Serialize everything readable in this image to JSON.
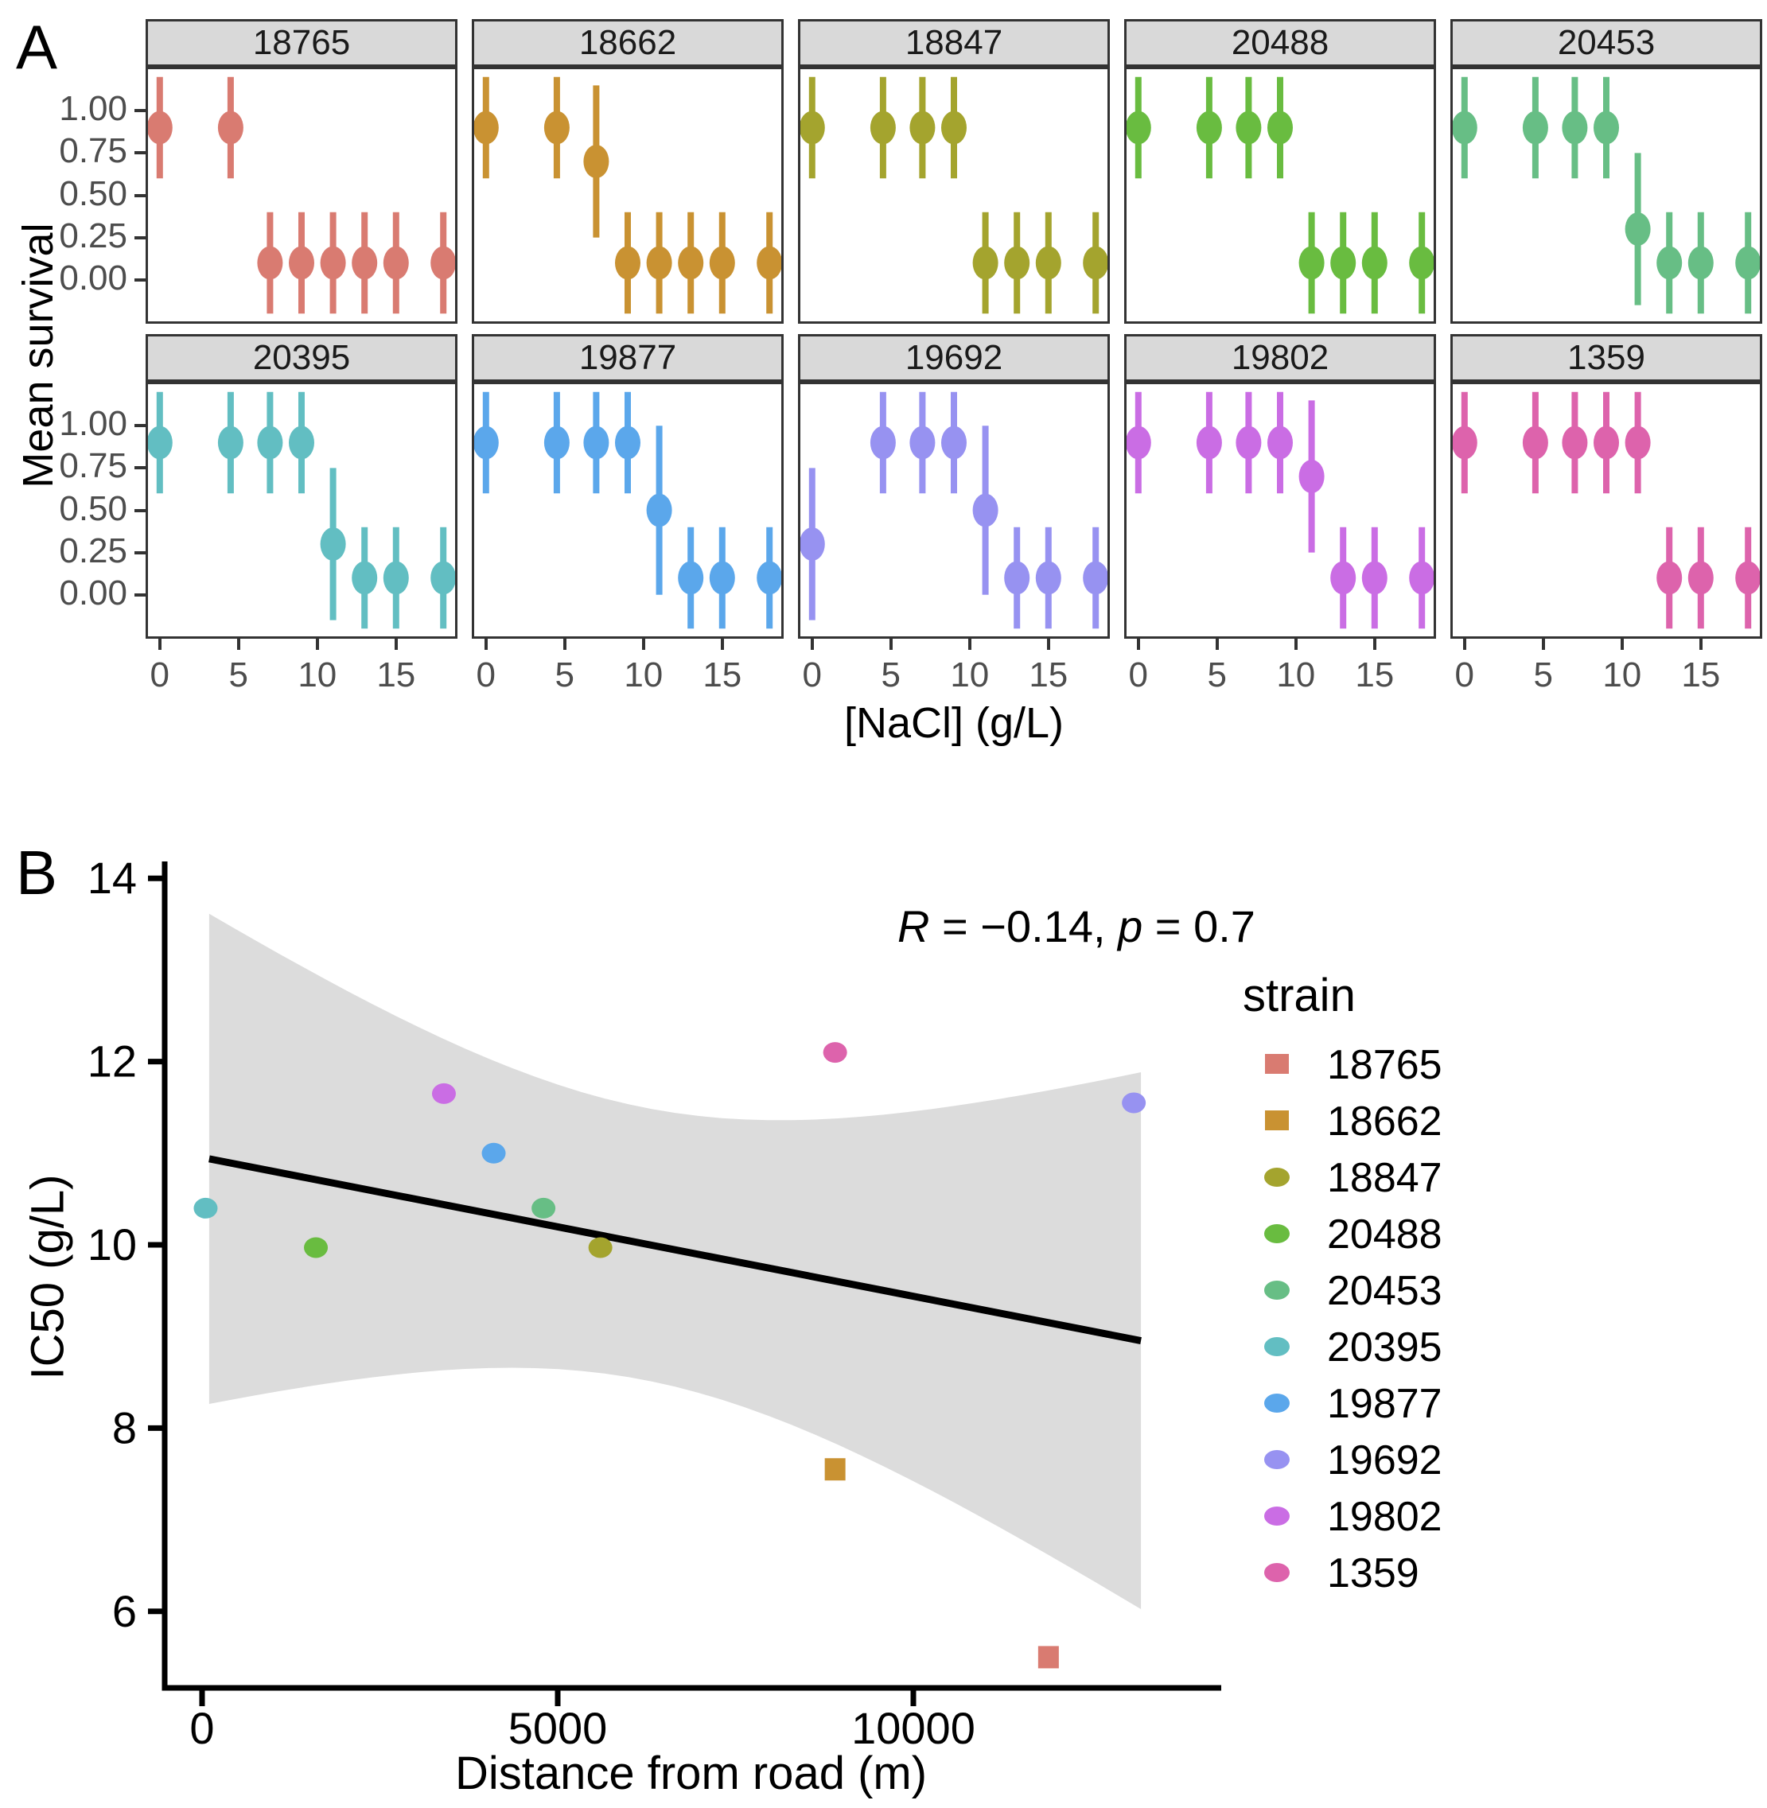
{
  "chart_data": [
    {
      "type": "scatter",
      "subtype": "faceted_pointrange",
      "panel_label": "A",
      "xlabel": "[NaCl] (g/L)",
      "ylabel": "Mean survival",
      "x": [
        0,
        4.5,
        7,
        9,
        11,
        13,
        15,
        18
      ],
      "x_ticks": [
        0,
        5,
        10,
        15
      ],
      "x_tick_labels": [
        "0",
        "5",
        "10",
        "15"
      ],
      "y_tick_values": [
        1.0,
        0.75,
        0.5,
        0.25,
        0.0
      ],
      "y_tick_labels": [
        "1.00",
        "0.75",
        "0.50",
        "0.25",
        "0.00"
      ],
      "xlim": [
        -0.9,
        18.9
      ],
      "ylim": [
        -0.26,
        1.26
      ],
      "grid": false,
      "strip_fill": "#d9d9d9",
      "facets": [
        {
          "strain": "18765",
          "color": "#D97B71",
          "means": [
            0.9,
            0.9,
            0.1,
            0.1,
            0.1,
            0.1,
            0.1,
            0.1
          ],
          "errors": [
            0.3,
            0.3,
            0.3,
            0.3,
            0.3,
            0.3,
            0.3,
            0.3
          ]
        },
        {
          "strain": "18662",
          "color": "#C99232",
          "means": [
            0.9,
            0.9,
            0.7,
            0.1,
            0.1,
            0.1,
            0.1,
            0.1
          ],
          "errors": [
            0.3,
            0.3,
            0.45,
            0.3,
            0.3,
            0.3,
            0.3,
            0.3
          ]
        },
        {
          "strain": "18847",
          "color": "#A4A42E",
          "means": [
            0.9,
            0.9,
            0.9,
            0.9,
            0.1,
            0.1,
            0.1,
            0.1
          ],
          "errors": [
            0.3,
            0.3,
            0.3,
            0.3,
            0.3,
            0.3,
            0.3,
            0.3
          ]
        },
        {
          "strain": "20488",
          "color": "#69BC40",
          "means": [
            0.9,
            0.9,
            0.9,
            0.9,
            0.1,
            0.1,
            0.1,
            0.1
          ],
          "errors": [
            0.3,
            0.3,
            0.3,
            0.3,
            0.3,
            0.3,
            0.3,
            0.3
          ]
        },
        {
          "strain": "20453",
          "color": "#67BE85",
          "means": [
            0.9,
            0.9,
            0.9,
            0.9,
            0.3,
            0.1,
            0.1,
            0.1
          ],
          "errors": [
            0.3,
            0.3,
            0.3,
            0.3,
            0.45,
            0.3,
            0.3,
            0.3
          ]
        },
        {
          "strain": "20395",
          "color": "#62BEC2",
          "means": [
            0.9,
            0.9,
            0.9,
            0.9,
            0.3,
            0.1,
            0.1,
            0.1
          ],
          "errors": [
            0.3,
            0.3,
            0.3,
            0.3,
            0.45,
            0.3,
            0.3,
            0.3
          ]
        },
        {
          "strain": "19877",
          "color": "#5BA7EB",
          "means": [
            0.9,
            0.9,
            0.9,
            0.9,
            0.5,
            0.1,
            0.1,
            0.1
          ],
          "errors": [
            0.3,
            0.3,
            0.3,
            0.3,
            0.5,
            0.3,
            0.3,
            0.3
          ]
        },
        {
          "strain": "19692",
          "color": "#9792F1",
          "means": [
            0.3,
            0.9,
            0.9,
            0.9,
            0.5,
            0.1,
            0.1,
            0.1
          ],
          "errors": [
            0.45,
            0.3,
            0.3,
            0.3,
            0.5,
            0.3,
            0.3,
            0.3
          ]
        },
        {
          "strain": "19802",
          "color": "#CA6DE4",
          "means": [
            0.9,
            0.9,
            0.9,
            0.9,
            0.7,
            0.1,
            0.1,
            0.1
          ],
          "errors": [
            0.3,
            0.3,
            0.3,
            0.3,
            0.45,
            0.3,
            0.3,
            0.3
          ]
        },
        {
          "strain": "1359",
          "color": "#DD63AC",
          "means": [
            0.9,
            0.9,
            0.9,
            0.9,
            0.9,
            0.1,
            0.1,
            0.1
          ],
          "errors": [
            0.3,
            0.3,
            0.3,
            0.3,
            0.3,
            0.3,
            0.3,
            0.3
          ]
        }
      ]
    },
    {
      "type": "scatter",
      "panel_label": "B",
      "xlabel": "Distance from road (m)",
      "ylabel": "IC50 (g/L)",
      "x_ticks": [
        0,
        5000,
        10000
      ],
      "x_tick_labels": [
        "0",
        "5000",
        "10000"
      ],
      "y_ticks": [
        6,
        8,
        10,
        12,
        14
      ],
      "y_tick_labels": [
        "6",
        "8",
        "10",
        "12",
        "14"
      ],
      "xlim": [
        -610,
        13850
      ],
      "ylim": [
        5.0,
        14.1
      ],
      "grid": false,
      "annotation": {
        "text": "R = −0.14, p = 0.7",
        "r_var": "R",
        "r_rest": " = −0.14, ",
        "p_var": "p",
        "p_rest": " = 0.7"
      },
      "regression_line": {
        "x_start": 100,
        "x_end": 13200,
        "y_start": 10.94,
        "y_end": 8.95,
        "color": "#000000"
      },
      "ci_band": {
        "level": 0.95,
        "color": "#dcdcdc"
      },
      "points": [
        {
          "strain": "18765",
          "x": 11900,
          "y": 5.5,
          "shape": "square",
          "color": "#D97B71"
        },
        {
          "strain": "18662",
          "x": 8900,
          "y": 7.55,
          "shape": "square",
          "color": "#C99232"
        },
        {
          "strain": "18847",
          "x": 5600,
          "y": 9.97,
          "shape": "circle",
          "color": "#A4A42E"
        },
        {
          "strain": "20488",
          "x": 1600,
          "y": 9.97,
          "shape": "circle",
          "color": "#69BC40"
        },
        {
          "strain": "20453",
          "x": 4800,
          "y": 10.4,
          "shape": "circle",
          "color": "#67BE85"
        },
        {
          "strain": "20395",
          "x": 50,
          "y": 10.4,
          "shape": "circle",
          "color": "#62BEC2"
        },
        {
          "strain": "19877",
          "x": 4100,
          "y": 11.0,
          "shape": "circle",
          "color": "#5BA7EB"
        },
        {
          "strain": "19692",
          "x": 13100,
          "y": 11.55,
          "shape": "circle",
          "color": "#9792F1"
        },
        {
          "strain": "19802",
          "x": 3400,
          "y": 11.65,
          "shape": "circle",
          "color": "#CA6DE4"
        },
        {
          "strain": "1359",
          "x": 8900,
          "y": 12.1,
          "shape": "circle",
          "color": "#DD63AC"
        }
      ],
      "legend": {
        "title": "strain",
        "position": "right",
        "entries": [
          {
            "label": "18765",
            "color": "#D97B71",
            "shape": "square"
          },
          {
            "label": "18662",
            "color": "#C99232",
            "shape": "square"
          },
          {
            "label": "18847",
            "color": "#A4A42E",
            "shape": "circle"
          },
          {
            "label": "20488",
            "color": "#69BC40",
            "shape": "circle"
          },
          {
            "label": "20453",
            "color": "#67BE85",
            "shape": "circle"
          },
          {
            "label": "20395",
            "color": "#62BEC2",
            "shape": "circle"
          },
          {
            "label": "19877",
            "color": "#5BA7EB",
            "shape": "circle"
          },
          {
            "label": "19692",
            "color": "#9792F1",
            "shape": "circle"
          },
          {
            "label": "19802",
            "color": "#CA6DE4",
            "shape": "circle"
          },
          {
            "label": "1359",
            "color": "#DD63AC",
            "shape": "circle"
          }
        ]
      }
    }
  ]
}
